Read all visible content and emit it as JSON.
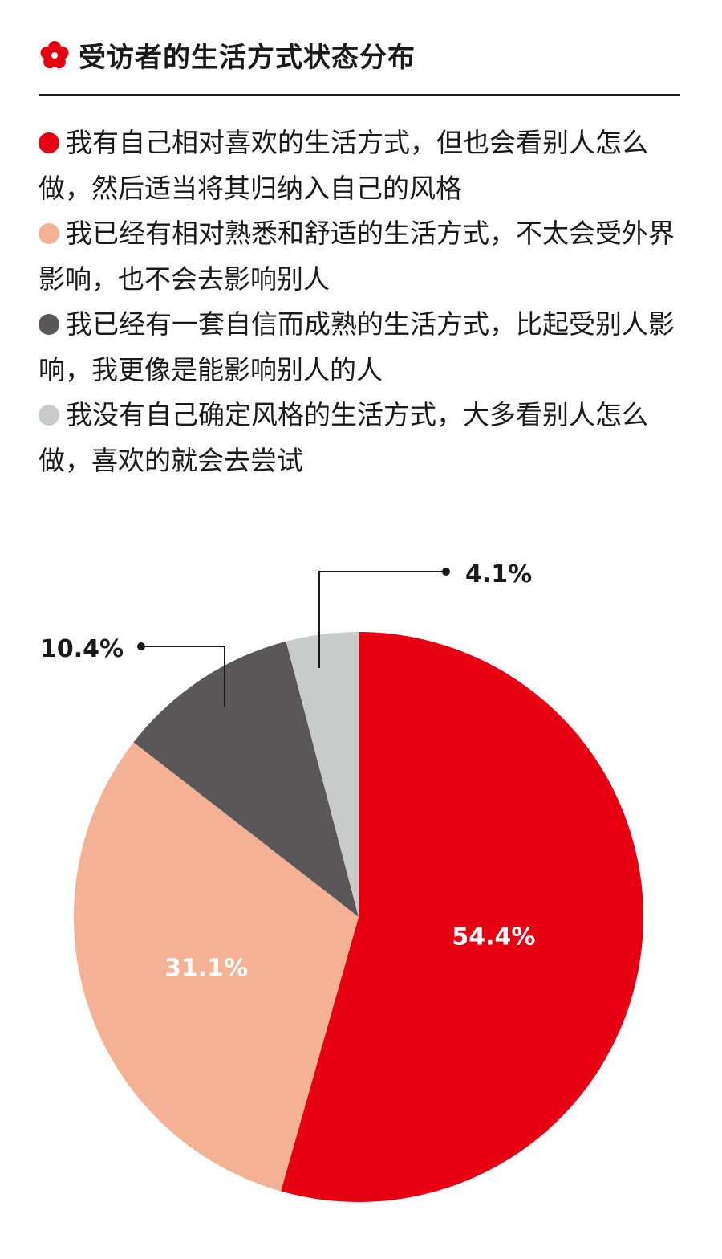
{
  "header": {
    "title": "受访者的生活方式状态分布",
    "icon": "red-flower-icon",
    "icon_color": "#e60012"
  },
  "chart_data": {
    "type": "pie",
    "title": "受访者的生活方式状态分布",
    "start": "top",
    "direction": "clockwise",
    "legend_position": "top",
    "series": [
      {
        "name": "我有自己相对喜欢的生活方式，但也会看别人怎么做，然后适当将其归纳入自己的风格",
        "value": 54.4,
        "label": "54.4%",
        "color": "#e60012"
      },
      {
        "name": "我已经有相对熟悉和舒适的生活方式，不太会受外界影响，也不会去影响别人",
        "value": 31.1,
        "label": "31.1%",
        "color": "#f4b193"
      },
      {
        "name": "我已经有一套自信而成熟的生活方式，比起受别人影响，我更像是能影响别人的人",
        "value": 10.4,
        "label": "10.4%",
        "color": "#595757"
      },
      {
        "name": "我没有自己确定风格的生活方式，大多看别人怎么做，喜欢的就会去尝试",
        "value": 4.1,
        "label": "4.1%",
        "color": "#c9caca"
      }
    ]
  }
}
